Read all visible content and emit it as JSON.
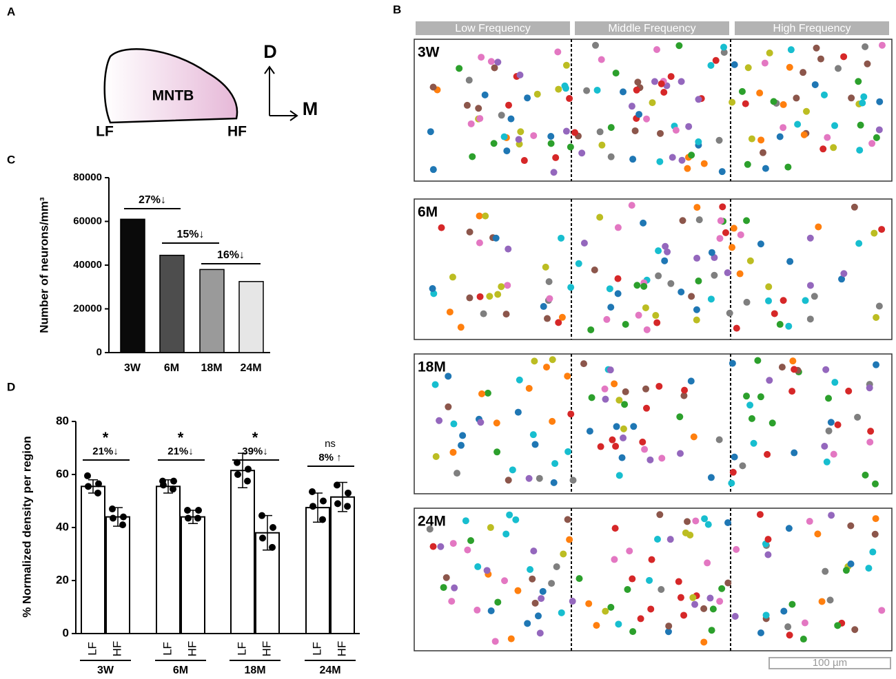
{
  "panel_labels": [
    "A",
    "B",
    "C",
    "D"
  ],
  "panel_a": {
    "region": "MNTB",
    "left": "LF",
    "right": "HF",
    "dorsal": "D",
    "medial": "M"
  },
  "panel_b": {
    "bands": [
      "Low Frequency",
      "Middle Frequency",
      "High Frequency"
    ],
    "ages": [
      "3W",
      "6M",
      "18M",
      "24M"
    ],
    "scale_bar": "100 µm"
  },
  "chart_data": [
    {
      "type": "bar",
      "ylabel": "Number of neurons/mm³",
      "categories": [
        "3W",
        "6M",
        "18M",
        "24M"
      ],
      "values": [
        61000,
        44500,
        38000,
        32500
      ],
      "colors": [
        "#0a0a0a",
        "#4d4d4d",
        "#9a9a9a",
        "#e6e6e6"
      ],
      "ylim": [
        0,
        80000
      ],
      "yticks": [
        0,
        20000,
        40000,
        60000,
        80000
      ],
      "annotations": [
        "27%↓",
        "15%↓",
        "16%↓"
      ]
    },
    {
      "type": "bar_points",
      "ylabel": "% Normalized density per region",
      "categories": [
        "3W",
        "6M",
        "18M",
        "24M"
      ],
      "series": [
        {
          "name": "LF",
          "color": "#ffffff",
          "values": [
            55.5,
            55.5,
            61.5,
            47.5
          ],
          "errors": [
            2.5,
            2.5,
            6.5,
            5.5
          ],
          "points": [
            [
              59.5,
              56.5,
              55.5,
              53
            ],
            [
              57.5,
              57.5,
              56,
              54.5
            ],
            [
              64.5,
              62,
              60,
              57.5
            ],
            [
              53.5,
              50,
              48,
              43
            ]
          ]
        },
        {
          "name": "HF",
          "color": "#ffffff",
          "values": [
            44,
            44,
            38,
            51.5
          ],
          "errors": [
            3.5,
            2.5,
            6.5,
            5.5
          ],
          "points": [
            [
              47,
              44,
              43.5,
              41
            ],
            [
              46.5,
              46.5,
              43.5,
              43.5
            ],
            [
              44.5,
              40,
              36,
              32.5
            ],
            [
              56,
              53,
              49,
              48
            ]
          ]
        }
      ],
      "ylim": [
        0,
        80
      ],
      "yticks": [
        0,
        20,
        40,
        60,
        80
      ],
      "significance": [
        "*",
        "*",
        "*",
        "ns"
      ],
      "annotations": [
        "21%↓",
        "21%↓",
        "39%↓",
        "8% ↑"
      ]
    }
  ]
}
